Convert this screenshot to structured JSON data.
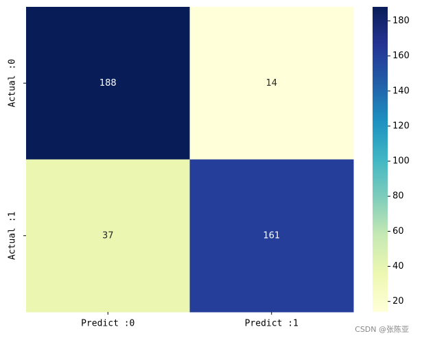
{
  "chart_data": {
    "type": "heatmap",
    "x_categories": [
      "Predict :0",
      "Predict :1"
    ],
    "y_categories": [
      "Actual :0",
      "Actual :1"
    ],
    "values": [
      [
        188,
        14
      ],
      [
        37,
        161
      ]
    ],
    "colormap": "YlGnBu",
    "colormap_colors": [
      "#ffffd9",
      "#edf8b1",
      "#c7e9b4",
      "#7fcdbb",
      "#41b6c4",
      "#1d91c0",
      "#225ea8",
      "#253494",
      "#081d58"
    ],
    "clim": [
      14,
      188
    ],
    "cticks": [
      20,
      40,
      60,
      80,
      100,
      120,
      140,
      160,
      180
    ],
    "watermark": "CSDN @张陈亚"
  }
}
